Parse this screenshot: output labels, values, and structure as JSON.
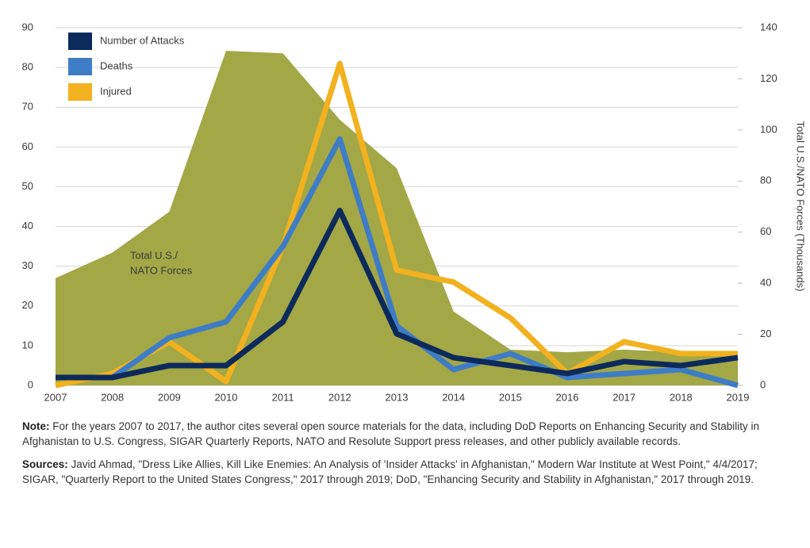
{
  "chart_data": {
    "type": "line",
    "categories": [
      "2007",
      "2008",
      "2009",
      "2010",
      "2011",
      "2012",
      "2013",
      "2014",
      "2015",
      "2016",
      "2017",
      "2018",
      "2019"
    ],
    "series": [
      {
        "type": "area",
        "axis": "y2",
        "color": "#a3a746",
        "values": [
          42,
          52,
          68,
          131,
          130,
          104,
          85,
          29,
          14,
          13,
          14,
          13,
          13
        ]
      },
      {
        "name": "Injured",
        "color": "#f2b11e",
        "values": [
          0,
          3,
          11,
          1,
          35,
          81,
          29,
          26,
          17,
          3,
          11,
          8,
          8
        ]
      },
      {
        "name": "Deaths",
        "color": "#3e7dc6",
        "values": [
          2,
          2,
          12,
          16,
          35,
          62,
          15,
          4,
          8,
          2,
          3,
          4,
          0
        ]
      },
      {
        "name": "Number of Attacks",
        "color": "#0c2a5b",
        "values": [
          2,
          2,
          5,
          5,
          16,
          44,
          13,
          7,
          5,
          3,
          6,
          5,
          7
        ]
      }
    ],
    "legend_order": [
      3,
      2,
      1
    ],
    "legend": "upper left",
    "annotation": [
      "Total U.S./",
      "NATO Forces"
    ],
    "ylim": [
      0,
      90
    ],
    "yticks": [
      0,
      10,
      20,
      30,
      40,
      50,
      60,
      70,
      80,
      90
    ],
    "y2lim": [
      0,
      140
    ],
    "y2ticks": [
      0,
      20,
      40,
      60,
      80,
      100,
      120,
      140
    ],
    "y2label": "Total U.S./NATO Forces (Thousands)",
    "grid": true
  },
  "notes": [
    {
      "label": "Note:",
      "text": "For the years 2007 to 2017, the author cites several open source materials for the data, including DoD Reports on Enhancing Security and Stability in Afghanistan to U.S. Congress, SIGAR Quarterly Reports, NATO and Resolute Support press releases, and other publicly available records."
    },
    {
      "label": "Sources:",
      "text": "Javid Ahmad, \"Dress Like Allies, Kill Like Enemies: An Analysis of 'Insider Attacks' in Afghanistan,\" Modern War Institute at West Point,\" 4/4/2017; SIGAR, \"Quarterly Report to the United States Congress,\" 2017 through 2019; DoD, \"Enhancing Security and Stability in Afghanistan,\" 2017 through 2019."
    }
  ]
}
